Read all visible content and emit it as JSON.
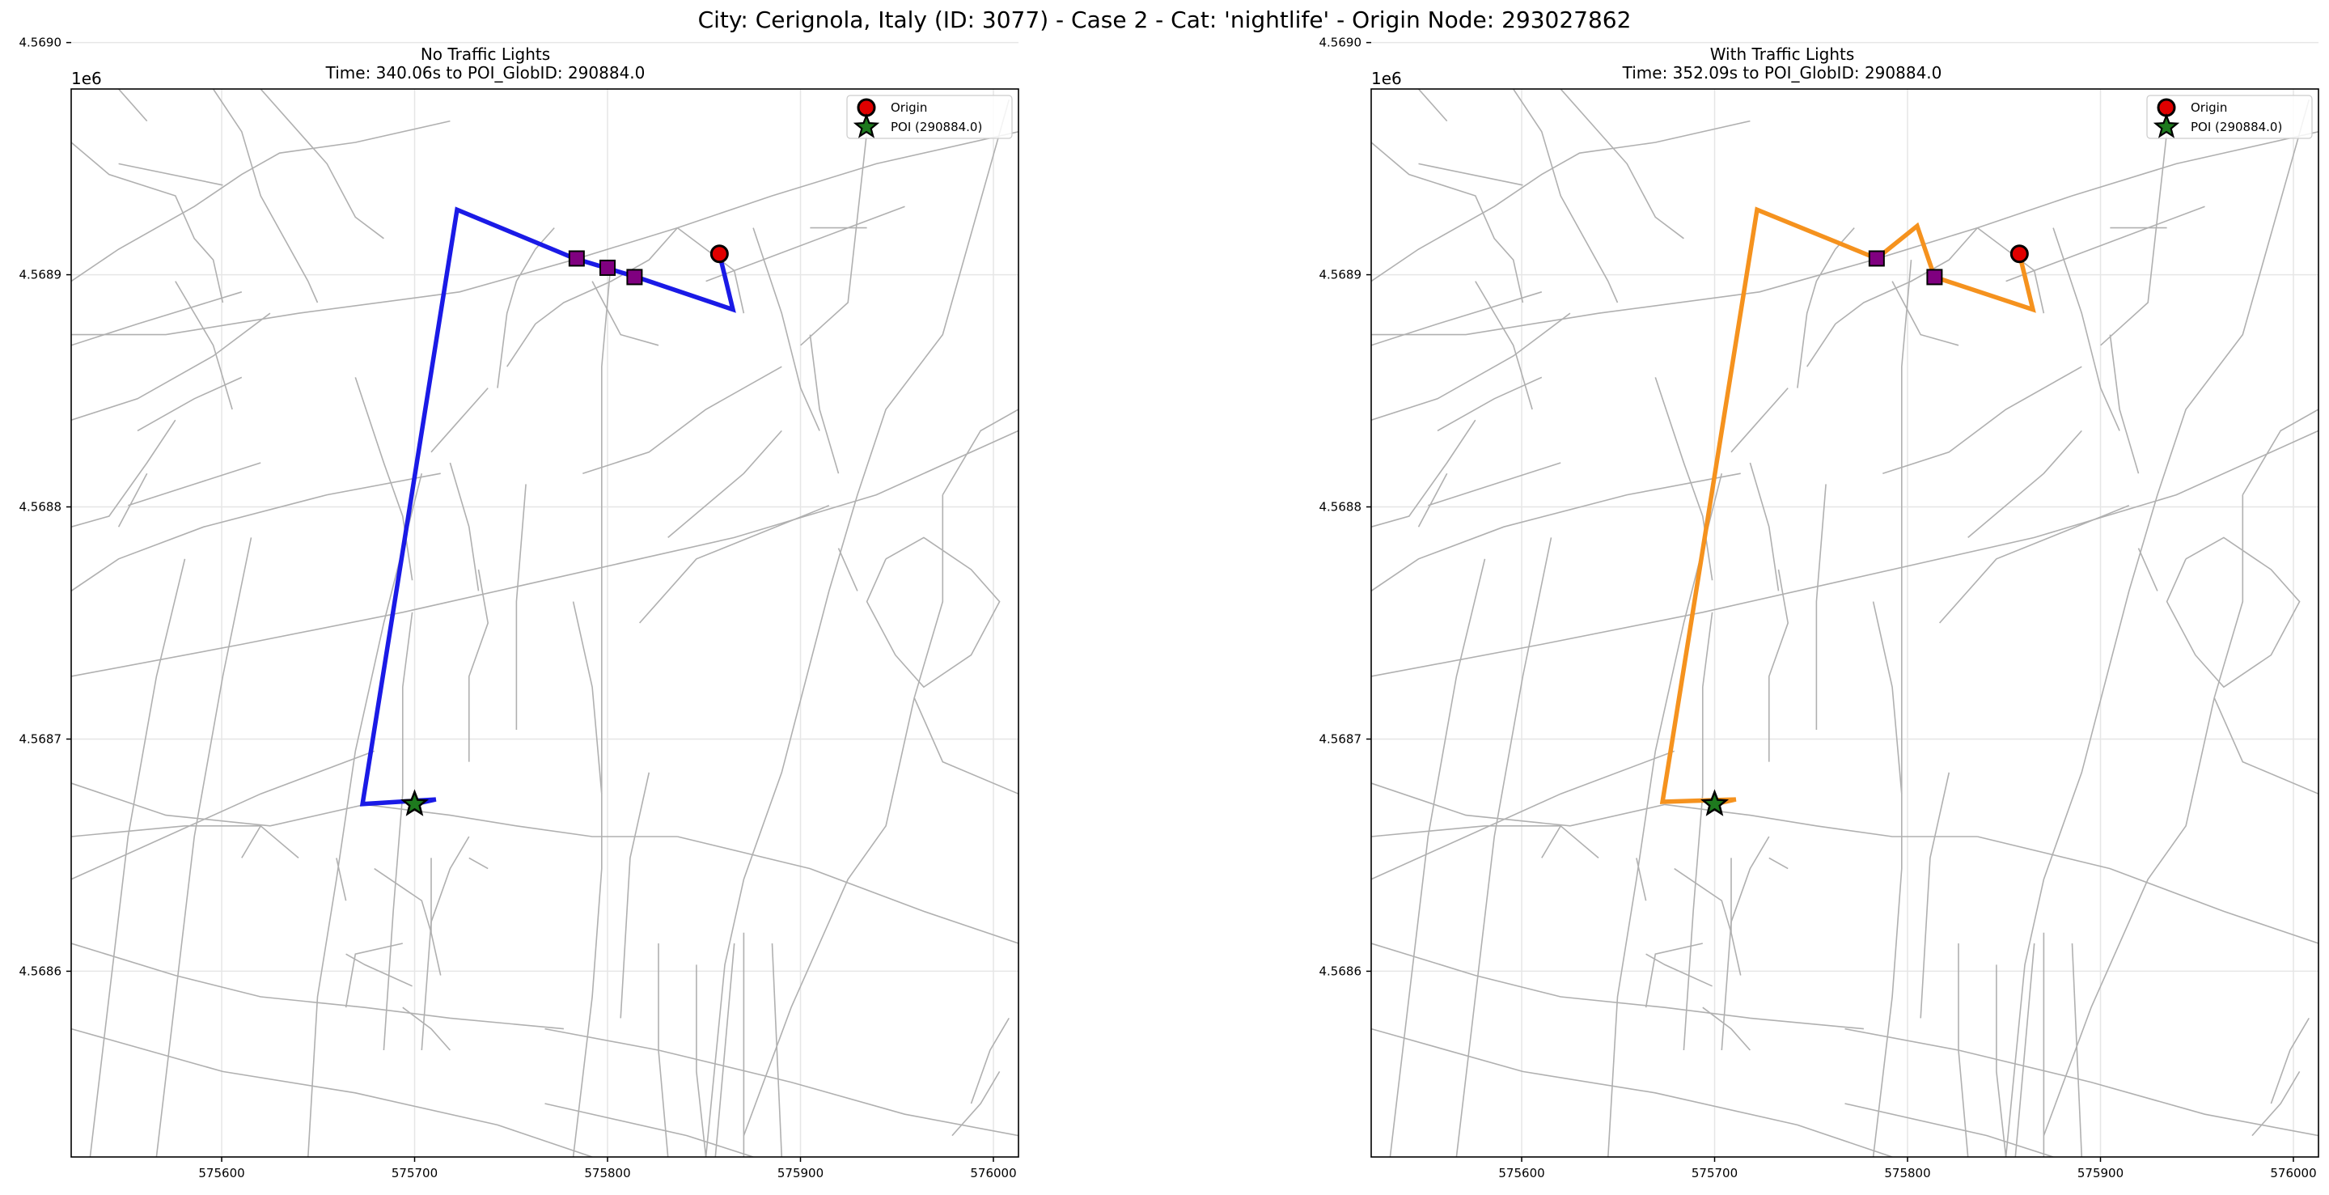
{
  "figure": {
    "title": "City: Cerignola, Italy (ID: 3077) - Case 2 - Cat: 'nightlife' - Origin Node: 293027862"
  },
  "colors": {
    "street": "#b0b0b0",
    "grid": "#e6e6e6",
    "route_left": "#1a1ae6",
    "route_right": "#f5921e",
    "origin": "#e00000",
    "poi": "#1e7a1e",
    "traffic_light": "#800080"
  },
  "chart_data": [
    {
      "type": "scatter",
      "title_line1": "No Traffic Lights",
      "title_line2": "Time: 340.06s to POI_GlobID: 290884.0",
      "y_offset_label": "1e6",
      "x_ticks": [
        575600,
        575700,
        575800,
        575900,
        576000
      ],
      "x_tick_labels": [
        "575600",
        "575700",
        "575800",
        "575900",
        "576000"
      ],
      "y_ticks": [
        4.5686,
        4.5687,
        4.5688,
        4.5689,
        4.569
      ],
      "y_tick_labels": [
        "4.5686",
        "4.5687",
        "4.5688",
        "4.5689",
        "4.5690"
      ],
      "xlim": [
        575522,
        576013
      ],
      "ylim": [
        4.56852,
        4.56898
      ],
      "grid": true,
      "legend_position": "upper right",
      "legend": [
        {
          "label": "Origin",
          "marker": "circle"
        },
        {
          "label": "POI (290884.0)",
          "marker": "star"
        }
      ],
      "route_color": "#1a1ae6",
      "route": [
        [
          575700,
          4.568672
        ],
        [
          575711,
          4.568674
        ],
        [
          575673,
          4.568672
        ],
        [
          575722,
          4.568928
        ],
        [
          575783,
          4.568907
        ],
        [
          575815,
          4.568899
        ],
        [
          575865,
          4.568885
        ],
        [
          575858,
          4.568909
        ]
      ],
      "origin": [
        575858,
        4.568909
      ],
      "poi": [
        575700,
        4.568672
      ],
      "traffic_lights": [
        [
          575784,
          4.568907
        ],
        [
          575800,
          4.568903
        ],
        [
          575814,
          4.568899
        ]
      ]
    },
    {
      "type": "scatter",
      "title_line1": "With Traffic Lights",
      "title_line2": "Time: 352.09s to POI_GlobID: 290884.0",
      "y_offset_label": "1e6",
      "x_ticks": [
        575600,
        575700,
        575800,
        575900,
        576000
      ],
      "x_tick_labels": [
        "575600",
        "575700",
        "575800",
        "575900",
        "576000"
      ],
      "y_ticks": [
        4.5686,
        4.5687,
        4.5688,
        4.5689,
        4.569
      ],
      "y_tick_labels": [
        "4.5686",
        "4.5687",
        "4.5688",
        "4.5689",
        "4.5690"
      ],
      "xlim": [
        575522,
        576013
      ],
      "ylim": [
        4.56852,
        4.56898
      ],
      "grid": true,
      "legend_position": "upper right",
      "legend": [
        {
          "label": "Origin",
          "marker": "circle"
        },
        {
          "label": "POI (290884.0)",
          "marker": "star"
        }
      ],
      "route_color": "#f5921e",
      "route": [
        [
          575700,
          4.568672
        ],
        [
          575711,
          4.568674
        ],
        [
          575673,
          4.568673
        ],
        [
          575722,
          4.568928
        ],
        [
          575784,
          4.568907
        ],
        [
          575805,
          4.568921
        ],
        [
          575814,
          4.568899
        ],
        [
          575865,
          4.568885
        ],
        [
          575858,
          4.568909
        ]
      ],
      "origin": [
        575858,
        4.568909
      ],
      "poi": [
        575700,
        4.568672
      ],
      "traffic_lights": [
        [
          575784,
          4.568907
        ],
        [
          575814,
          4.568899
        ]
      ]
    }
  ]
}
